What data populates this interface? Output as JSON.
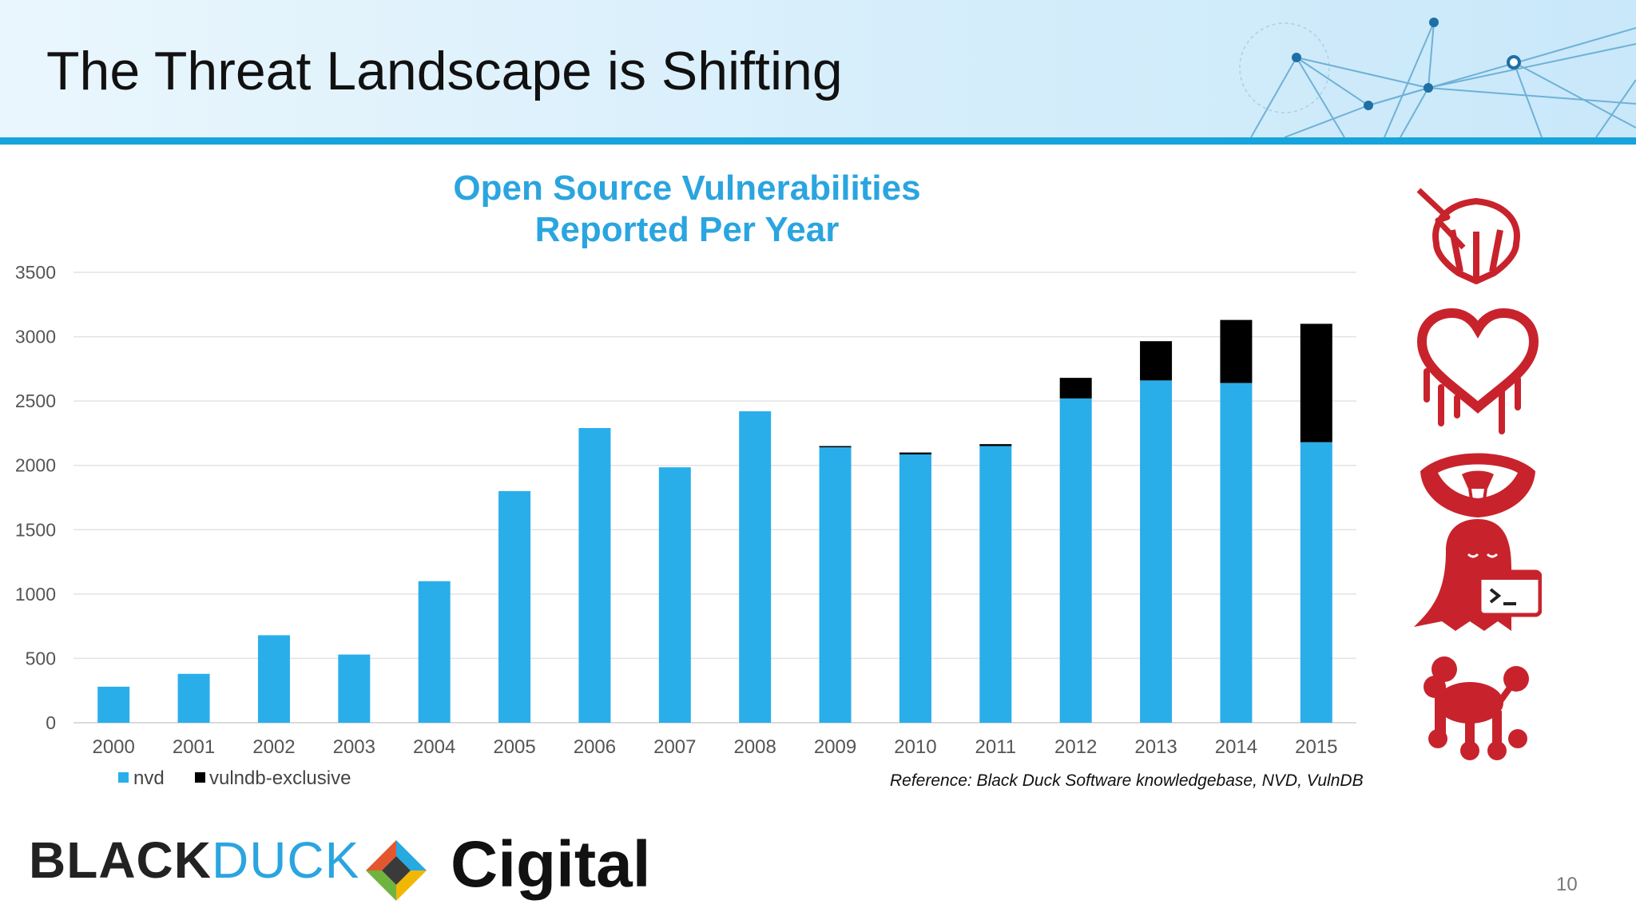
{
  "slide": {
    "title": "The Threat Landscape is Shifting",
    "page_number": "10",
    "reference": "Reference: Black Duck Software knowledgebase, NVD, VulnDB",
    "logos": {
      "blackduck_part1": "BLACK",
      "blackduck_part2": "DUCK",
      "cigital": "Cigital"
    },
    "icons": [
      "shellshock-icon",
      "heartbleed-icon",
      "venom-icon",
      "ghost-icon",
      "poodle-icon"
    ]
  },
  "colors": {
    "accent": "#17a3dc",
    "nvd": "#2aaeea",
    "vulndb": "#000000",
    "title_blue": "#2aa5e0",
    "icon_red": "#c8232c"
  },
  "chart_data": {
    "type": "bar",
    "stacked": true,
    "title_line1": "Open Source Vulnerabilities",
    "title_line2": "Reported Per Year",
    "categories": [
      "2000",
      "2001",
      "2002",
      "2003",
      "2004",
      "2005",
      "2006",
      "2007",
      "2008",
      "2009",
      "2010",
      "2011",
      "2012",
      "2013",
      "2014",
      "2015"
    ],
    "series": [
      {
        "name": "nvd",
        "values": [
          280,
          380,
          680,
          530,
          1100,
          1800,
          2290,
          1985,
          2420,
          2140,
          2085,
          2150,
          2520,
          2660,
          2640,
          2180
        ]
      },
      {
        "name": "vulndb-exclusive",
        "values": [
          0,
          0,
          0,
          0,
          0,
          0,
          0,
          0,
          0,
          10,
          15,
          15,
          160,
          305,
          490,
          920
        ]
      }
    ],
    "yticks": [
      "0",
      "500",
      "1000",
      "1500",
      "2000",
      "2500",
      "3000",
      "3500"
    ],
    "ylim": [
      0,
      3500
    ],
    "xlabel": "",
    "ylabel": "",
    "legend_position": "bottom-left",
    "grid": true
  }
}
